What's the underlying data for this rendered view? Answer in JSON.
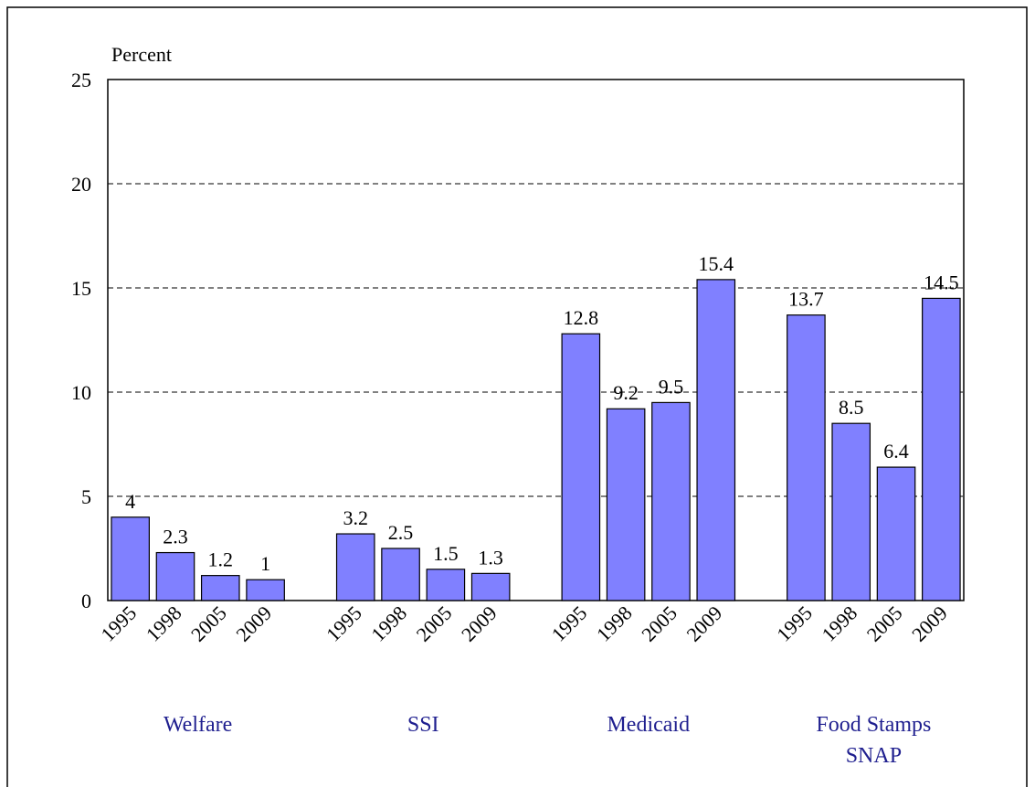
{
  "chart_data": {
    "type": "bar",
    "y_label": "Percent",
    "color": "#8080ff",
    "grid": true,
    "ylim": [
      0,
      25
    ],
    "yticks": [
      0,
      5,
      10,
      15,
      20,
      25
    ],
    "groups": [
      {
        "label_lines": [
          "Welfare"
        ],
        "categories": [
          "1995",
          "1998",
          "2005",
          "2009"
        ],
        "values": [
          4,
          2.3,
          1.2,
          1
        ]
      },
      {
        "label_lines": [
          "SSI"
        ],
        "categories": [
          "1995",
          "1998",
          "2005",
          "2009"
        ],
        "values": [
          3.2,
          2.5,
          1.5,
          1.3
        ]
      },
      {
        "label_lines": [
          "Medicaid"
        ],
        "categories": [
          "1995",
          "1998",
          "2005",
          "2009"
        ],
        "values": [
          12.8,
          9.2,
          9.5,
          15.4
        ]
      },
      {
        "label_lines": [
          "Food Stamps",
          "SNAP"
        ],
        "categories": [
          "1995",
          "1998",
          "2005",
          "2009"
        ],
        "values": [
          13.7,
          8.5,
          6.4,
          14.5
        ]
      }
    ]
  }
}
